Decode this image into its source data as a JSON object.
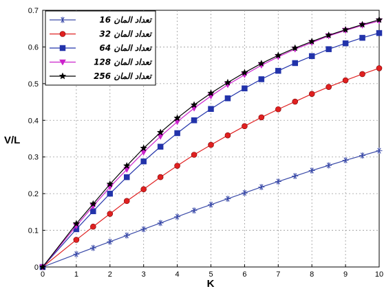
{
  "chart_data": {
    "type": "line",
    "xlabel": "K",
    "ylabel": "V/L",
    "xlim": [
      0,
      10
    ],
    "ylim": [
      0,
      0.7
    ],
    "grid": true,
    "legend_position": "top-left",
    "x_ticks": [
      "0",
      "1",
      "2",
      "3",
      "4",
      "5",
      "6",
      "7",
      "8",
      "9",
      "10"
    ],
    "y_ticks": [
      "0",
      "0.1",
      "0.2",
      "0.3",
      "0.4",
      "0.5",
      "0.6",
      "0.7"
    ],
    "x": [
      0,
      1,
      1.5,
      2,
      2.5,
      3,
      3.5,
      4,
      4.5,
      5,
      5.5,
      6,
      6.5,
      7,
      7.5,
      8,
      8.5,
      9,
      9.5,
      10
    ],
    "series": [
      {
        "name": "16 تعداد المان",
        "label_number": "16",
        "label_text": "تعداد المان",
        "color": "#3a4aa8",
        "marker": "star",
        "values": [
          0,
          0.035,
          0.052,
          0.069,
          0.086,
          0.103,
          0.12,
          0.137,
          0.154,
          0.17,
          0.186,
          0.202,
          0.218,
          0.233,
          0.248,
          0.263,
          0.277,
          0.291,
          0.304,
          0.317
        ]
      },
      {
        "name": "32 تعداد المان",
        "label_number": "32",
        "label_text": "تعداد المان",
        "color": "#e02020",
        "marker": "circle",
        "values": [
          0,
          0.074,
          0.11,
          0.145,
          0.18,
          0.212,
          0.245,
          0.276,
          0.306,
          0.333,
          0.359,
          0.384,
          0.408,
          0.43,
          0.451,
          0.472,
          0.491,
          0.509,
          0.526,
          0.542
        ]
      },
      {
        "name": "64 تعداد المان",
        "label_number": "64",
        "label_text": "تعداد المان",
        "color": "#2233aa",
        "marker": "square",
        "values": [
          0,
          0.103,
          0.152,
          0.2,
          0.245,
          0.288,
          0.328,
          0.365,
          0.4,
          0.431,
          0.46,
          0.487,
          0.512,
          0.535,
          0.556,
          0.575,
          0.594,
          0.61,
          0.625,
          0.638
        ]
      },
      {
        "name": "128 تعداد المان",
        "label_number": "128",
        "label_text": "تعداد المان",
        "color": "#cc22cc",
        "marker": "triangle-down",
        "values": [
          0,
          0.112,
          0.166,
          0.218,
          0.266,
          0.313,
          0.356,
          0.396,
          0.433,
          0.466,
          0.497,
          0.524,
          0.55,
          0.573,
          0.594,
          0.612,
          0.63,
          0.645,
          0.659,
          0.671
        ]
      },
      {
        "name": "256 تعداد المان",
        "label_number": "256",
        "label_text": "تعداد المان",
        "color": "#000000",
        "marker": "star5",
        "values": [
          0,
          0.118,
          0.172,
          0.226,
          0.276,
          0.324,
          0.367,
          0.406,
          0.442,
          0.474,
          0.503,
          0.53,
          0.555,
          0.577,
          0.597,
          0.615,
          0.632,
          0.647,
          0.661,
          0.674
        ]
      }
    ]
  }
}
